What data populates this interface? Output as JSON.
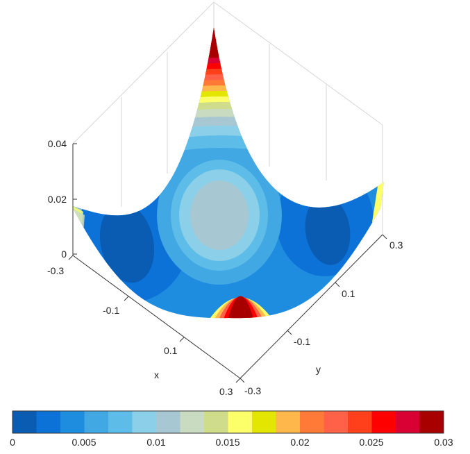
{
  "chart_data": {
    "type": "surface",
    "view": "3d-filled-contour",
    "xlabel": "x",
    "ylabel": "y",
    "zlabel": "",
    "x_ticks": [
      "-0.3",
      "-0.1",
      "0.1",
      "0.3"
    ],
    "y_ticks": [
      "-0.3",
      "-0.1",
      "0.1",
      "0.3"
    ],
    "z_ticks": [
      "0",
      "0.02",
      "0.04"
    ],
    "xlim": [
      -0.3,
      0.3
    ],
    "ylim": [
      -0.3,
      0.3
    ],
    "zlim": [
      0,
      0.04
    ],
    "grid": true,
    "colorbar": {
      "min": 0,
      "max": 0.03,
      "ticks": [
        "0",
        "0.005",
        "0.01",
        "0.015",
        "0.02",
        "0.025",
        "0.03"
      ],
      "colors": [
        "#0a5bb2",
        "#0d72d7",
        "#1f8ddf",
        "#41a8e3",
        "#5ebde8",
        "#8ccfe9",
        "#a7c7d3",
        "#c9dcc2",
        "#cfdc8c",
        "#fdff6a",
        "#e3e600",
        "#fdb74a",
        "#ff7a37",
        "#ff6148",
        "#ff401b",
        "#ff0000",
        "#d90033",
        "#a80000"
      ]
    },
    "features": {
      "peaks": [
        "corner x=-0.3,y=-0.3 reaching z≈0.04",
        "corner x=0.3,y=0.3 rising above 0.03",
        "corners x=±0.3,y=∓0.3 near 0.02"
      ],
      "center_value": 0.01,
      "minima": [
        "two lobes near x≈0, y≈±0.2 with z≈0.001"
      ]
    }
  }
}
